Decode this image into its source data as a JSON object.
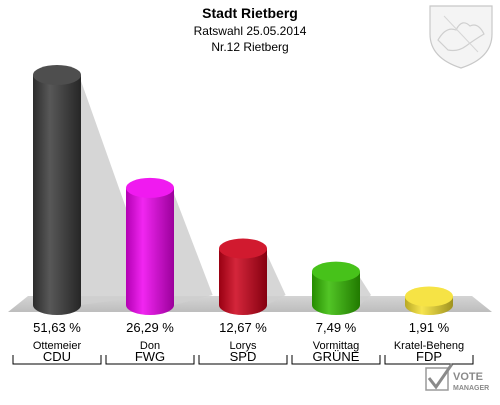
{
  "header": {
    "title": "Stadt Rietberg",
    "subtitle": "Ratswahl 25.05.2014",
    "district": "Nr.12 Rietberg"
  },
  "chart_data": {
    "type": "bar",
    "title": "Stadt Rietberg",
    "subtitle": "Ratswahl 25.05.2014",
    "ylim": [
      0,
      55
    ],
    "grid": false,
    "legend": "none",
    "categories": [
      "CDU",
      "FWG",
      "SPD",
      "GRÜNE",
      "FDP"
    ],
    "candidates": [
      "Ottemeier",
      "Don",
      "Lorys",
      "Vormittag",
      "Kratel-Beheng"
    ],
    "values": [
      51.63,
      26.29,
      12.67,
      7.49,
      1.91
    ],
    "value_labels": [
      "51,63 %",
      "26,29 %",
      "12,67 %",
      "7,49 %",
      "1,91 %"
    ],
    "colors": [
      "#3a3a3a",
      "#ee00ee",
      "#cc0018",
      "#33bb00",
      "#f5e030"
    ]
  },
  "logo": {
    "text_line1": "VOTE",
    "text_line2": "MANAGER"
  }
}
